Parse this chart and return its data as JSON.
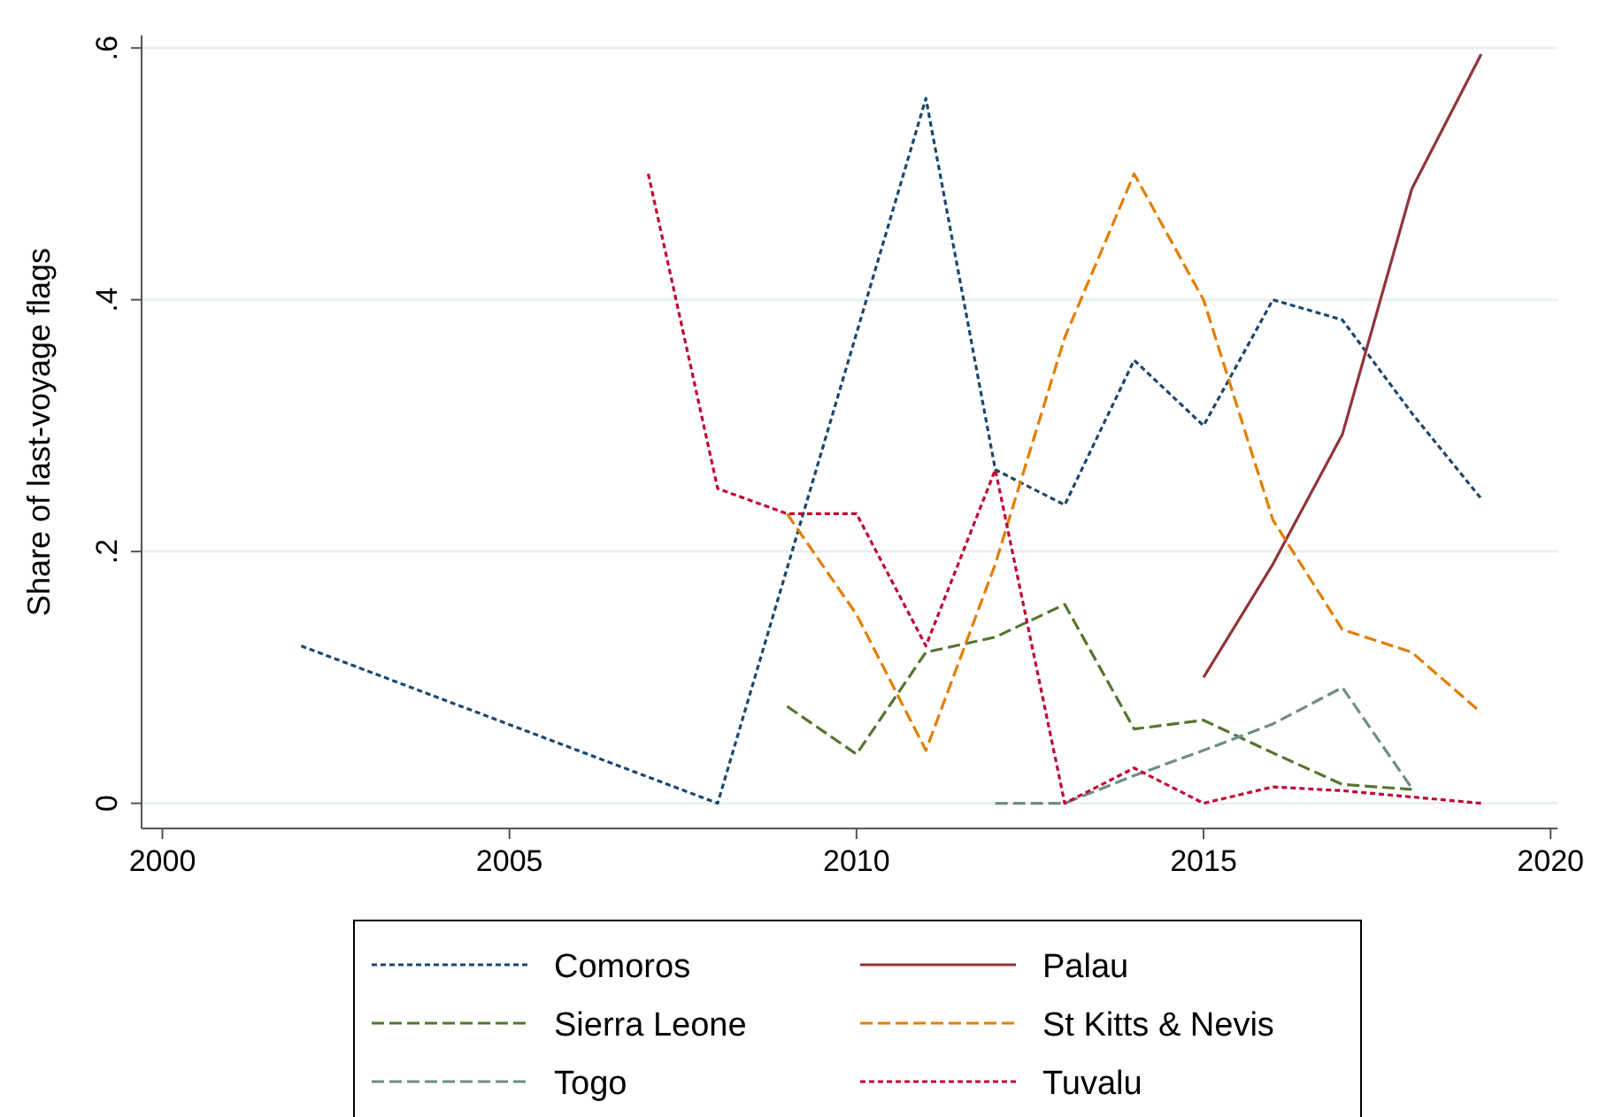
{
  "chart_data": {
    "type": "line",
    "ylabel": "Share of last-voyage flags",
    "xlim": [
      1999.7,
      2020.1
    ],
    "xticks": [
      2000,
      2005,
      2010,
      2015,
      2020
    ],
    "ylim": [
      -0.02,
      0.61
    ],
    "yticks": [
      {
        "value": 0,
        "label": "0"
      },
      {
        "value": 0.2,
        "label": ".2"
      },
      {
        "value": 0.4,
        "label": ".4"
      },
      {
        "value": 0.6,
        "label": ".6"
      }
    ],
    "grid": "y",
    "legend": "bottom",
    "marker": "none",
    "series": [
      {
        "name": "Comoros",
        "color": "#1a476f",
        "line_style": "dotted",
        "x": [
          2002,
          2008,
          2011,
          2012,
          2013,
          2014,
          2015,
          2016,
          2017,
          2018,
          2019
        ],
        "values": [
          0.125,
          0,
          0.56,
          0.265,
          0.237,
          0.352,
          0.3,
          0.4,
          0.384,
          0.31,
          0.242
        ]
      },
      {
        "name": "Palau",
        "color": "#90353b",
        "line_style": "solid",
        "x": [
          2015,
          2016,
          2017,
          2018,
          2019
        ],
        "values": [
          0.1,
          0.19,
          0.293,
          0.488,
          0.595
        ]
      },
      {
        "name": "Sierra Leone",
        "color": "#55752f",
        "line_style": "dashed",
        "x": [
          2009,
          2010,
          2011,
          2012,
          2013,
          2014,
          2015,
          2016,
          2017,
          2018
        ],
        "values": [
          0.077,
          0.039,
          0.12,
          0.132,
          0.158,
          0.059,
          0.066,
          0.04,
          0.015,
          0.011
        ]
      },
      {
        "name": "St Kitts & Nevis",
        "color": "#e37e00",
        "line_style": "dashed",
        "x": [
          2009,
          2010,
          2011,
          2012,
          2013,
          2014,
          2015,
          2016,
          2017,
          2018,
          2019
        ],
        "values": [
          0.23,
          0.15,
          0.042,
          0.19,
          0.37,
          0.5,
          0.4,
          0.225,
          0.138,
          0.12,
          0.072
        ]
      },
      {
        "name": "Togo",
        "color": "#6e8e84",
        "line_style": "dashed",
        "x": [
          2012,
          2013,
          2014,
          2015,
          2016,
          2017,
          2018
        ],
        "values": [
          0,
          0,
          0.022,
          0.042,
          0.063,
          0.092,
          0.012
        ]
      },
      {
        "name": "Tuvalu",
        "color": "#c10534",
        "line_style": "dotted",
        "x": [
          2007,
          2008,
          2009,
          2010,
          2011,
          2012,
          2013,
          2014,
          2015,
          2016,
          2017,
          2018,
          2019
        ],
        "values": [
          0.5,
          0.25,
          0.23,
          0.23,
          0.125,
          0.265,
          0,
          0.028,
          0,
          0.013,
          0.01,
          0.005,
          0
        ]
      }
    ]
  }
}
